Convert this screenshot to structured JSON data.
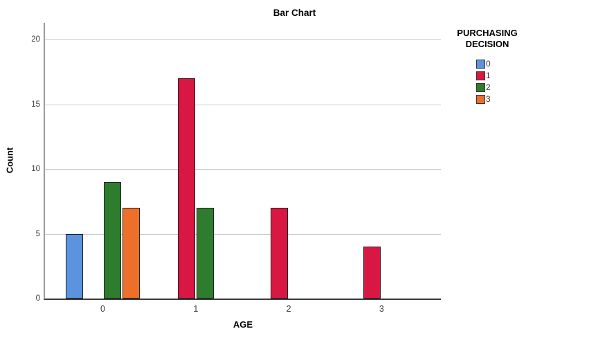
{
  "chart_data": {
    "type": "bar",
    "title": "Bar Chart",
    "xlabel": "AGE",
    "ylabel": "Count",
    "categories": [
      "0",
      "1",
      "2",
      "3"
    ],
    "series": [
      {
        "name": "0",
        "color": "#5B93DE",
        "values": [
          5,
          null,
          null,
          null
        ]
      },
      {
        "name": "1",
        "color": "#D81743",
        "values": [
          null,
          17,
          7,
          4
        ]
      },
      {
        "name": "2",
        "color": "#2E7D2E",
        "values": [
          9,
          7,
          null,
          null
        ]
      },
      {
        "name": "3",
        "color": "#EE6F29",
        "values": [
          7,
          null,
          null,
          null
        ]
      }
    ],
    "ylim": [
      0,
      21.3
    ],
    "yticks": [
      0,
      5,
      10,
      15,
      20
    ],
    "grid": true,
    "legend_position": "right",
    "legend": {
      "title": "PURCHASING DECISION",
      "entries": [
        {
          "label": "0",
          "color": "#5B93DE"
        },
        {
          "label": "1",
          "color": "#D81743"
        },
        {
          "label": "2",
          "color": "#2E7D2E"
        },
        {
          "label": "3",
          "color": "#EE6F29"
        }
      ]
    },
    "colors": {
      "bar_border": "#1F1F1F",
      "gridline": "#C9C9C9",
      "y_axis_line": "#9B9B9B",
      "x_axis_line": "#3A3A3A"
    }
  }
}
